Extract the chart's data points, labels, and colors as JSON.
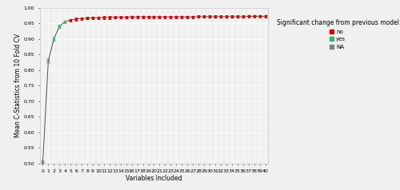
{
  "x_values": [
    0,
    1,
    2,
    3,
    4,
    5,
    6,
    7,
    8,
    9,
    10,
    11,
    12,
    13,
    14,
    15,
    16,
    17,
    18,
    19,
    20,
    21,
    22,
    23,
    24,
    25,
    26,
    27,
    28,
    29,
    30,
    31,
    32,
    33,
    34,
    35,
    36,
    37,
    38,
    39,
    40
  ],
  "y_values": [
    0.505,
    0.83,
    0.9,
    0.94,
    0.955,
    0.96,
    0.963,
    0.965,
    0.966,
    0.967,
    0.967,
    0.968,
    0.968,
    0.969,
    0.969,
    0.969,
    0.97,
    0.97,
    0.97,
    0.97,
    0.97,
    0.97,
    0.97,
    0.97,
    0.97,
    0.97,
    0.97,
    0.97,
    0.971,
    0.971,
    0.971,
    0.971,
    0.971,
    0.971,
    0.971,
    0.971,
    0.971,
    0.972,
    0.972,
    0.972,
    0.972
  ],
  "y_err": [
    0.005,
    0.008,
    0.006,
    0.005,
    0.004,
    0.004,
    0.004,
    0.004,
    0.004,
    0.004,
    0.004,
    0.004,
    0.004,
    0.004,
    0.004,
    0.004,
    0.004,
    0.004,
    0.004,
    0.004,
    0.004,
    0.004,
    0.004,
    0.004,
    0.004,
    0.004,
    0.004,
    0.004,
    0.004,
    0.004,
    0.004,
    0.004,
    0.004,
    0.004,
    0.004,
    0.004,
    0.004,
    0.004,
    0.004,
    0.004,
    0.004
  ],
  "point_colors": [
    "#808080",
    "#808080",
    "#3cb371",
    "#3cb371",
    "#3cb371",
    "#cc0000",
    "#cc0000",
    "#cc0000",
    "#cc0000",
    "#cc0000",
    "#cc0000",
    "#cc0000",
    "#cc0000",
    "#cc0000",
    "#cc0000",
    "#cc0000",
    "#cc0000",
    "#cc0000",
    "#cc0000",
    "#cc0000",
    "#cc0000",
    "#cc0000",
    "#cc0000",
    "#cc0000",
    "#cc0000",
    "#cc0000",
    "#cc0000",
    "#cc0000",
    "#cc0000",
    "#cc0000",
    "#cc0000",
    "#cc0000",
    "#cc0000",
    "#cc0000",
    "#cc0000",
    "#cc0000",
    "#cc0000",
    "#cc0000",
    "#cc0000",
    "#cc0000",
    "#cc0000"
  ],
  "xlabel": "Variables Included",
  "ylabel": "Mean C-Statistics from 10 Fold CV",
  "ylim": [
    0.5,
    1.0
  ],
  "xlim": [
    -0.5,
    40.5
  ],
  "yticks": [
    0.5,
    0.55,
    0.6,
    0.65,
    0.7,
    0.75,
    0.8,
    0.85,
    0.9,
    0.95,
    1.0
  ],
  "xticks": [
    0,
    1,
    2,
    3,
    4,
    5,
    6,
    7,
    8,
    9,
    10,
    11,
    12,
    13,
    14,
    15,
    16,
    17,
    18,
    19,
    20,
    21,
    22,
    23,
    24,
    25,
    26,
    27,
    28,
    29,
    30,
    31,
    32,
    33,
    34,
    35,
    36,
    37,
    38,
    39,
    40
  ],
  "line_color": "#505050",
  "bg_color": "#f0f0f0",
  "plot_bg_color": "#f0f0f0",
  "grid_color": "#ffffff",
  "legend_title": "Significant change from previous model",
  "legend_items": [
    {
      "label": "no",
      "color": "#cc0000"
    },
    {
      "label": "yes",
      "color": "#3cb371"
    },
    {
      "label": "NA",
      "color": "#808080"
    }
  ],
  "axis_fontsize": 5.5,
  "tick_fontsize": 4.5,
  "legend_title_fontsize": 5.5,
  "legend_fontsize": 5.0
}
